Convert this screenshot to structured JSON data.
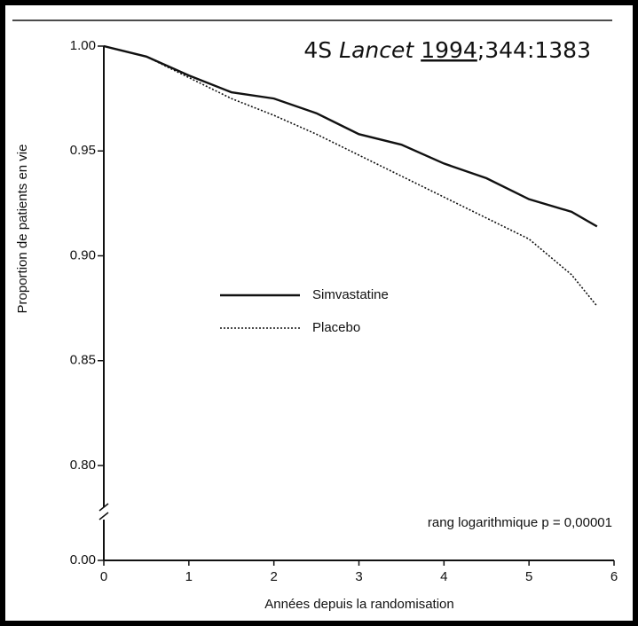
{
  "citation": {
    "study": "4S",
    "journal": "Lancet",
    "year": "1994",
    "ref": ";344:1383"
  },
  "chart_data": {
    "type": "line",
    "y_label": "Proportion de patients en vie",
    "x_label": "Années depuis la randomisation",
    "annotation": "rang logarithmique p = 0,00001",
    "x": [
      0,
      0.5,
      1,
      1.5,
      2,
      2.5,
      3,
      3.5,
      4,
      4.5,
      5,
      5.5,
      5.8
    ],
    "series": [
      {
        "name": "Simvastatine",
        "color": "#111111",
        "style": "solid",
        "values": [
          1.0,
          0.995,
          0.986,
          0.978,
          0.975,
          0.968,
          0.958,
          0.953,
          0.944,
          0.937,
          0.927,
          0.921,
          0.914
        ]
      },
      {
        "name": "Placebo",
        "color": "#111111",
        "style": "dotted",
        "values": [
          1.0,
          0.995,
          0.985,
          0.975,
          0.967,
          0.958,
          0.948,
          0.938,
          0.928,
          0.918,
          0.908,
          0.891,
          0.876
        ]
      }
    ],
    "xlim": [
      0,
      6
    ],
    "xticks": [
      0,
      1,
      2,
      3,
      4,
      5,
      6
    ],
    "ylim": [
      0.8,
      1.0
    ],
    "yticks": [
      {
        "value": 1.0,
        "label": "1.00"
      },
      {
        "value": 0.95,
        "label": "0.95"
      },
      {
        "value": 0.9,
        "label": "0.90"
      },
      {
        "value": 0.85,
        "label": "0.85"
      },
      {
        "value": 0.8,
        "label": "0.80"
      },
      {
        "value": 0,
        "label": "0.00"
      }
    ],
    "axis_break": true,
    "legend": "center-left"
  }
}
